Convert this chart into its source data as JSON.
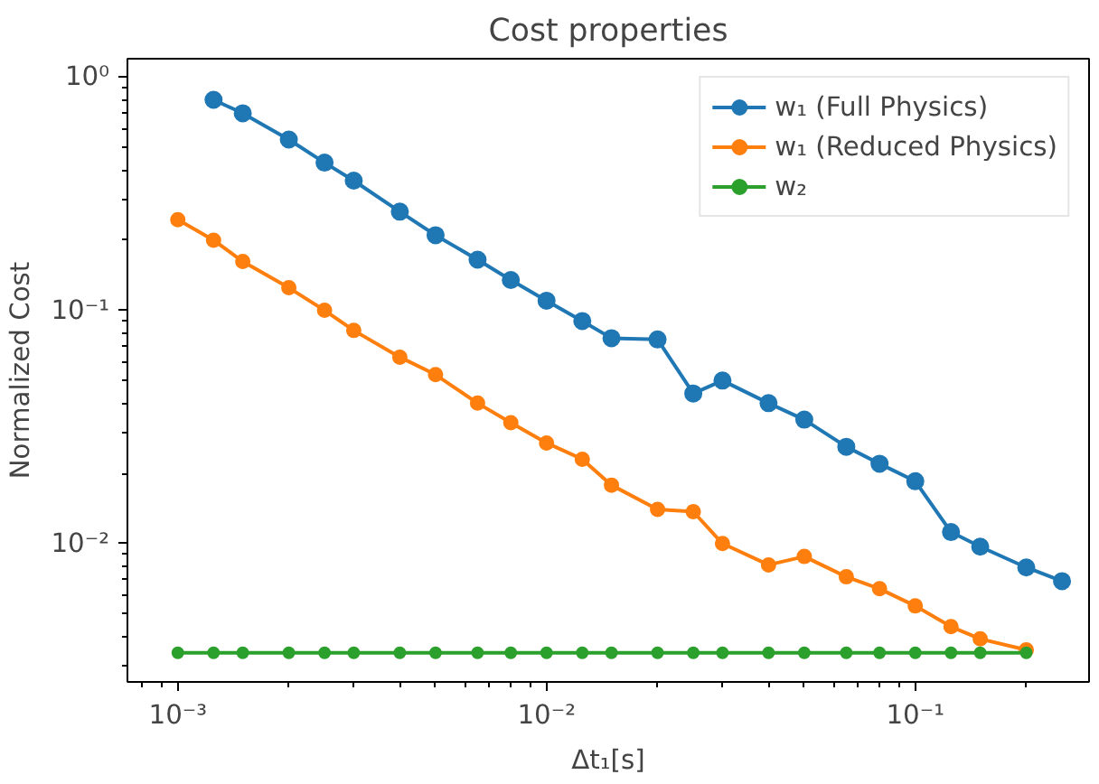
{
  "chart_data": {
    "type": "line",
    "title": "Cost properties",
    "xlabel": "Δt₁[s]",
    "ylabel": "Normalized Cost",
    "log": "xy",
    "grid": false,
    "legend": "top right",
    "marker": "circle",
    "line_style": "solid",
    "xlim": [
      0.00073,
      0.296
    ],
    "ylim": [
      0.00255,
      1.2
    ],
    "xticks": [
      {
        "value": 0.001,
        "label": "10⁻³"
      },
      {
        "value": 0.01,
        "label": "10⁻²"
      },
      {
        "value": 0.1,
        "label": "10⁻¹"
      }
    ],
    "yticks": [
      {
        "value": 0.01,
        "label": "10⁻²"
      },
      {
        "value": 0.1,
        "label": "10⁻¹"
      },
      {
        "value": 1,
        "label": "10⁰"
      }
    ],
    "series": [
      {
        "name": "w₁ (Full Physics)",
        "color": "#1f77b4",
        "x": [
          0.00125,
          0.0015,
          0.002,
          0.0025,
          0.003,
          0.004,
          0.005,
          0.0065,
          0.008,
          0.01,
          0.0125,
          0.015,
          0.02,
          0.025,
          0.03,
          0.04,
          0.05,
          0.065,
          0.08,
          0.1,
          0.125,
          0.15,
          0.2,
          0.25
        ],
        "values": [
          0.8,
          0.7,
          0.54,
          0.43,
          0.36,
          0.265,
          0.21,
          0.165,
          0.135,
          0.11,
          0.09,
          0.076,
          0.075,
          0.044,
          0.05,
          0.04,
          0.034,
          0.026,
          0.022,
          0.0185,
          0.0112,
          0.0097,
          0.0079,
          0.0069
        ]
      },
      {
        "name": "w₁ (Reduced Physics)",
        "color": "#ff7f0e",
        "x": [
          0.001,
          0.00125,
          0.0015,
          0.002,
          0.0025,
          0.003,
          0.004,
          0.005,
          0.0065,
          0.008,
          0.01,
          0.0125,
          0.015,
          0.02,
          0.025,
          0.03,
          0.04,
          0.05,
          0.065,
          0.08,
          0.1,
          0.125,
          0.15,
          0.2
        ],
        "values": [
          0.245,
          0.2,
          0.162,
          0.125,
          0.1,
          0.082,
          0.063,
          0.053,
          0.04,
          0.033,
          0.027,
          0.023,
          0.0178,
          0.014,
          0.0137,
          0.01,
          0.0081,
          0.0088,
          0.0072,
          0.0064,
          0.0054,
          0.0044,
          0.0039,
          0.0035
        ]
      },
      {
        "name": "w₂",
        "color": "#2ca02c",
        "x": [
          0.001,
          0.00125,
          0.0015,
          0.002,
          0.0025,
          0.003,
          0.004,
          0.005,
          0.0065,
          0.008,
          0.01,
          0.0125,
          0.015,
          0.02,
          0.025,
          0.03,
          0.04,
          0.05,
          0.065,
          0.08,
          0.1,
          0.125,
          0.15,
          0.2
        ],
        "values": [
          0.0034,
          0.0034,
          0.0034,
          0.0034,
          0.0034,
          0.0034,
          0.0034,
          0.0034,
          0.0034,
          0.0034,
          0.0034,
          0.0034,
          0.0034,
          0.0034,
          0.0034,
          0.0034,
          0.0034,
          0.0034,
          0.0034,
          0.0034,
          0.0034,
          0.0034,
          0.0034,
          0.0034
        ]
      }
    ]
  }
}
